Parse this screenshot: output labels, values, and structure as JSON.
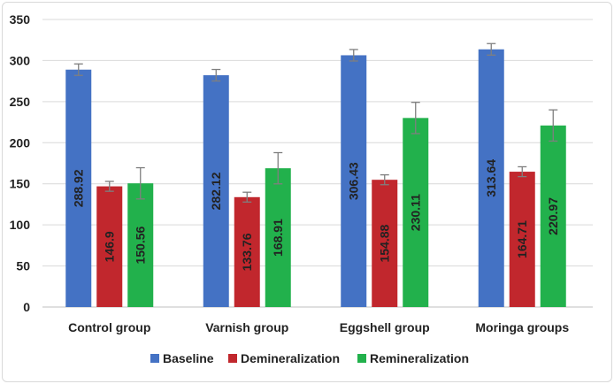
{
  "chart_data": {
    "type": "bar",
    "title": "",
    "xlabel": "",
    "ylabel": "",
    "ylim": [
      0,
      350
    ],
    "yticks": [
      0,
      50,
      100,
      150,
      200,
      250,
      300,
      350
    ],
    "grid": true,
    "legend_position": "bottom",
    "categories": [
      "Control group",
      "Varnish group",
      "Eggshell group",
      "Moringa groups"
    ],
    "series": [
      {
        "name": "Baseline",
        "color": "#4472c4",
        "values": [
          288.92,
          282.12,
          306.43,
          313.64
        ],
        "errors": [
          7,
          7,
          7,
          7
        ]
      },
      {
        "name": "Demineralization",
        "color": "#c1272d",
        "values": [
          146.9,
          133.76,
          154.88,
          164.71
        ],
        "errors": [
          6,
          6,
          6,
          6
        ]
      },
      {
        "name": "Remineralization",
        "color": "#22b14c",
        "values": [
          150.56,
          168.91,
          230.11,
          220.97
        ],
        "errors": [
          19,
          19,
          19,
          19
        ]
      }
    ],
    "data_labels": [
      [
        "288.92",
        "282.12",
        "306.43",
        "313.64"
      ],
      [
        "146.9",
        "133.76",
        "154.88",
        "164.71"
      ],
      [
        "150.56",
        "168.91",
        "230.11",
        "220.97"
      ]
    ]
  }
}
